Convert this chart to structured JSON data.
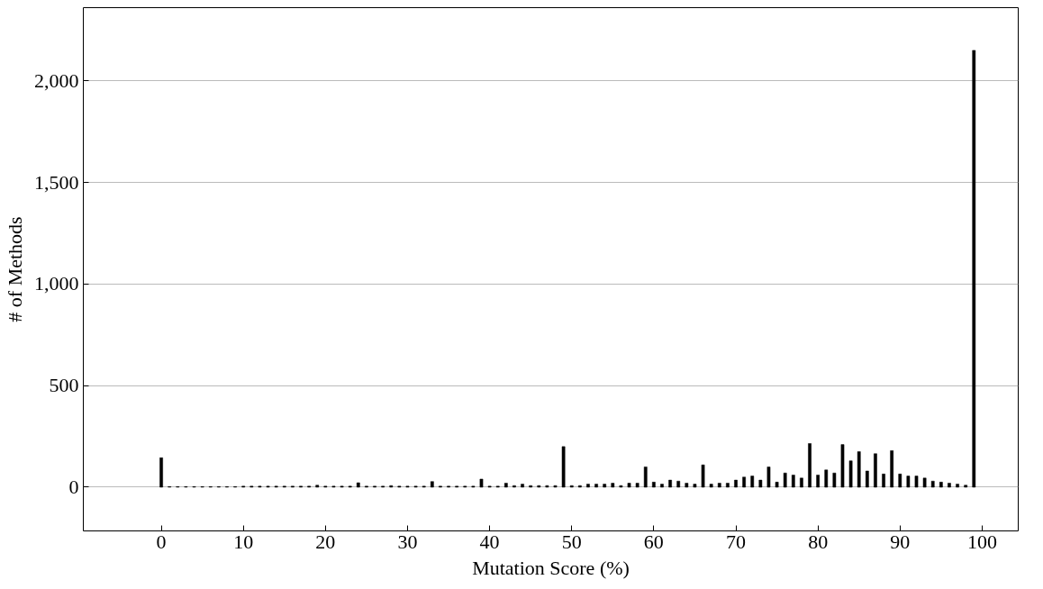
{
  "chart_data": {
    "type": "bar",
    "xlabel": "Mutation Score (%)",
    "ylabel": "# of Methods",
    "x": [
      0,
      1,
      2,
      3,
      4,
      5,
      6,
      7,
      8,
      9,
      10,
      11,
      12,
      13,
      14,
      15,
      16,
      17,
      18,
      19,
      20,
      21,
      22,
      23,
      24,
      25,
      26,
      27,
      28,
      29,
      30,
      31,
      32,
      33,
      34,
      35,
      36,
      37,
      38,
      39,
      40,
      41,
      42,
      43,
      44,
      45,
      46,
      47,
      48,
      49,
      50,
      51,
      52,
      53,
      54,
      55,
      56,
      57,
      58,
      59,
      60,
      61,
      62,
      63,
      64,
      65,
      66,
      67,
      68,
      69,
      70,
      71,
      72,
      73,
      74,
      75,
      76,
      77,
      78,
      79,
      80,
      81,
      82,
      83,
      84,
      85,
      86,
      87,
      88,
      89,
      90,
      91,
      92,
      93,
      94,
      95,
      96,
      97,
      98,
      99
    ],
    "values": [
      145,
      3,
      3,
      3,
      3,
      3,
      3,
      3,
      3,
      3,
      5,
      5,
      5,
      5,
      5,
      5,
      5,
      5,
      5,
      10,
      5,
      5,
      5,
      5,
      22,
      5,
      5,
      5,
      8,
      5,
      5,
      5,
      5,
      28,
      5,
      5,
      5,
      5,
      5,
      40,
      5,
      5,
      20,
      8,
      15,
      8,
      8,
      8,
      8,
      200,
      8,
      8,
      15,
      15,
      15,
      20,
      8,
      20,
      20,
      100,
      25,
      15,
      35,
      30,
      20,
      15,
      110,
      15,
      20,
      20,
      35,
      50,
      55,
      35,
      100,
      25,
      70,
      60,
      45,
      215,
      60,
      85,
      70,
      210,
      130,
      175,
      80,
      165,
      65,
      180,
      65,
      55,
      55,
      45,
      30,
      25,
      20,
      15,
      10,
      2150
    ],
    "color": "#000000",
    "xlim": [
      -9.5,
      104.4
    ],
    "ylim": [
      -215,
      2360
    ],
    "xticks": [
      0,
      10,
      20,
      30,
      40,
      50,
      60,
      70,
      80,
      90,
      100
    ],
    "yticks": [
      0,
      {
        "value": 500,
        "label": "500"
      },
      {
        "value": 1000,
        "label": "1,000"
      },
      {
        "value": 1500,
        "label": "1,500"
      },
      {
        "value": 2000,
        "label": "2,000"
      }
    ],
    "grid": "y"
  }
}
